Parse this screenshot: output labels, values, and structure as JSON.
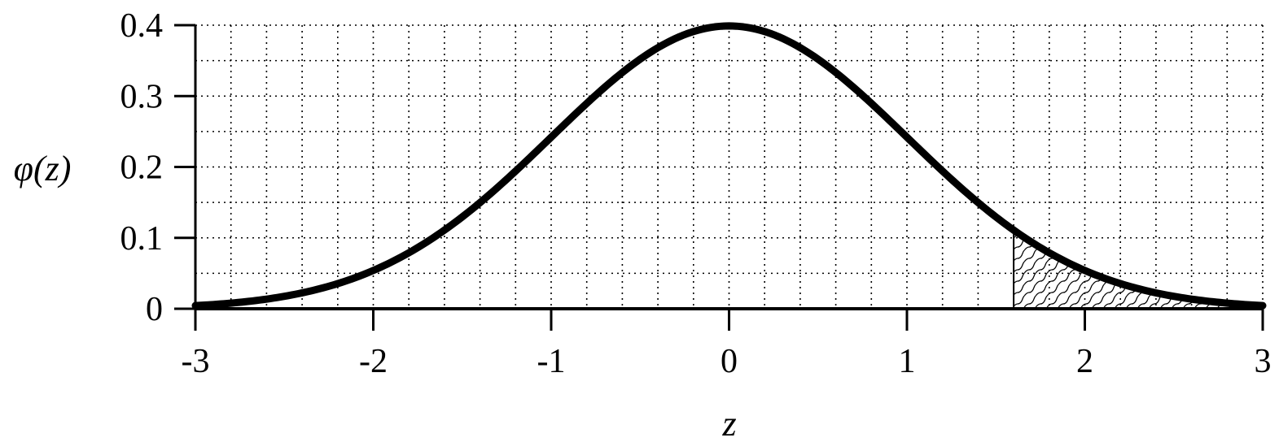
{
  "chart_data": {
    "type": "line",
    "title": "",
    "xlabel": "z",
    "ylabel": "φ(z)",
    "xlim": [
      -3,
      3
    ],
    "ylim": [
      0,
      0.4
    ],
    "x_ticks": [
      "-3",
      "-2",
      "-1",
      "0",
      "1",
      "2",
      "3"
    ],
    "y_ticks": [
      "0",
      "0.1",
      "0.2",
      "0.3",
      "0.4"
    ],
    "grid": "dotted, minor step 0.2 on x and 0.05 on y",
    "series": [
      {
        "function": "standard normal density",
        "x": [
          -3.0,
          -2.5,
          -2.0,
          -1.5,
          -1.0,
          -0.5,
          0.0,
          0.5,
          1.0,
          1.5,
          2.0,
          2.5,
          3.0
        ],
        "y": [
          0.0044,
          0.0175,
          0.054,
          0.1295,
          0.242,
          0.3521,
          0.3989,
          0.3521,
          0.242,
          0.1295,
          0.054,
          0.0175,
          0.0044
        ]
      }
    ],
    "shaded_region": {
      "from_x": 1.6,
      "to_x": 3.0,
      "pattern": "wavy hatching"
    },
    "colors": {
      "line": "#000000",
      "background": "#ffffff"
    }
  }
}
